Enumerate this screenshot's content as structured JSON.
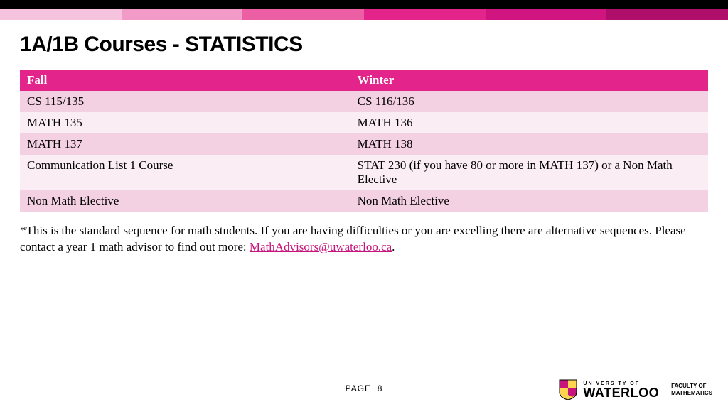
{
  "topbar": {
    "colors": [
      "#f5c3de",
      "#f29bc8",
      "#ec5fa5",
      "#e3248b",
      "#d11580",
      "#b00e6b"
    ]
  },
  "title": "1A/1B Courses - STATISTICS",
  "table": {
    "header_bg": "#e3248b",
    "row_colors": [
      "#f4d0e3",
      "#fbedf4",
      "#f4d0e3",
      "#fbedf4",
      "#f4d0e3"
    ],
    "columns": [
      "Fall",
      "Winter"
    ],
    "rows": [
      [
        "CS 115/135",
        "CS 116/136"
      ],
      [
        "MATH 135",
        "MATH 136"
      ],
      [
        "MATH 137",
        "MATH 138"
      ],
      [
        "Communication List 1 Course",
        "STAT 230 (if you have 80 or more in MATH 137) or a Non Math Elective"
      ],
      [
        "Non Math Elective",
        "Non Math Elective"
      ]
    ],
    "col_width": [
      "48%",
      "52%"
    ]
  },
  "note_prefix": "*This is the standard sequence for math students.  If you are having difficulties or you are excelling there are alternative sequences.  Please contact a year 1 math advisor to find out more:  ",
  "note_link_text": "MathAdvisors@uwaterloo.ca",
  "note_suffix": ".",
  "footer": {
    "page_label": "PAGE",
    "page_number": "8",
    "university_top": "UNIVERSITY OF",
    "university_name": "WATERLOO",
    "faculty_line1": "FACULTY OF",
    "faculty_line2": "MATHEMATICS"
  }
}
